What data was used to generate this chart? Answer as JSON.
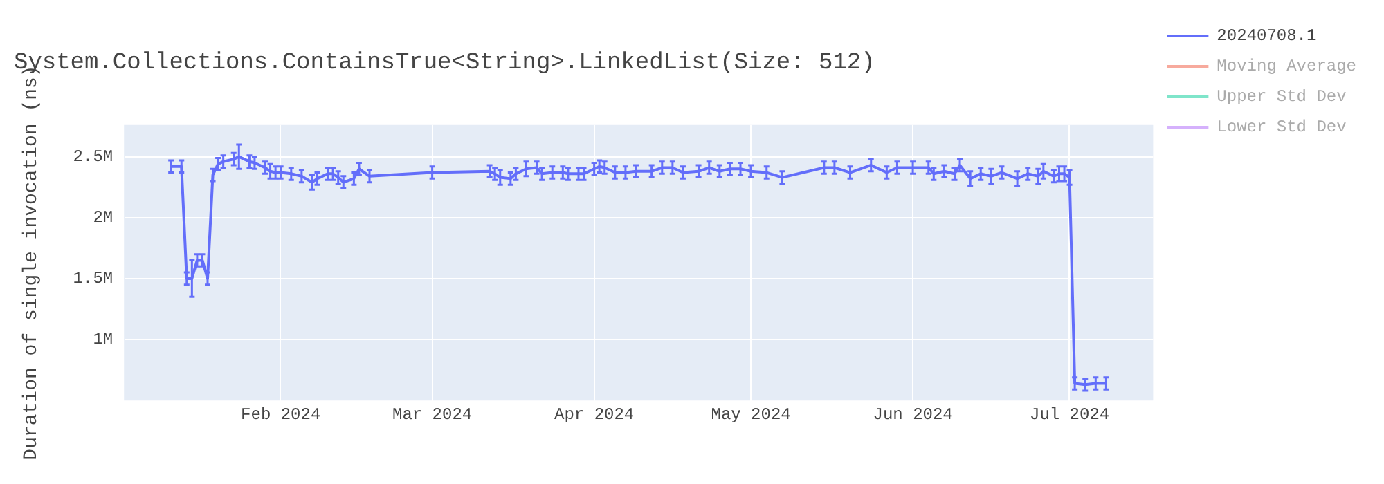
{
  "chart_data": {
    "type": "line",
    "title": "System.Collections.ContainsTrue<String>.LinkedList(Size: 512)",
    "ylabel": "Duration of single invocation (ns)",
    "xlim": [
      "2024-01-02",
      "2024-07-17"
    ],
    "ylim": [
      500000,
      2760000
    ],
    "xticks": [
      {
        "value": "2024-02-01",
        "label": "Feb 2024"
      },
      {
        "value": "2024-03-01",
        "label": "Mar 2024"
      },
      {
        "value": "2024-04-01",
        "label": "Apr 2024"
      },
      {
        "value": "2024-05-01",
        "label": "May 2024"
      },
      {
        "value": "2024-06-01",
        "label": "Jun 2024"
      },
      {
        "value": "2024-07-01",
        "label": "Jul 2024"
      }
    ],
    "yticks": [
      {
        "value": 1000000,
        "label": "1M"
      },
      {
        "value": 1500000,
        "label": "1.5M"
      },
      {
        "value": 2000000,
        "label": "2M"
      },
      {
        "value": 2500000,
        "label": "2.5M"
      }
    ],
    "grid": true,
    "legend": "top right",
    "line_style": "solid",
    "series": [
      {
        "name": "20240708.1",
        "color": "#636efa",
        "x": [
          "2024-01-11",
          "2024-01-13",
          "2024-01-14",
          "2024-01-15",
          "2024-01-16",
          "2024-01-17",
          "2024-01-18",
          "2024-01-19",
          "2024-01-20",
          "2024-01-21",
          "2024-01-23",
          "2024-01-24",
          "2024-01-26",
          "2024-01-27",
          "2024-01-29",
          "2024-01-30",
          "2024-01-31",
          "2024-02-01",
          "2024-02-03",
          "2024-02-05",
          "2024-02-07",
          "2024-02-08",
          "2024-02-10",
          "2024-02-11",
          "2024-02-12",
          "2024-02-13",
          "2024-02-15",
          "2024-02-16",
          "2024-02-18",
          "2024-03-01",
          "2024-03-12",
          "2024-03-13",
          "2024-03-14",
          "2024-03-16",
          "2024-03-17",
          "2024-03-19",
          "2024-03-21",
          "2024-03-22",
          "2024-03-24",
          "2024-03-26",
          "2024-03-27",
          "2024-03-29",
          "2024-03-30",
          "2024-04-01",
          "2024-04-02",
          "2024-04-03",
          "2024-04-05",
          "2024-04-07",
          "2024-04-09",
          "2024-04-12",
          "2024-04-14",
          "2024-04-16",
          "2024-04-18",
          "2024-04-21",
          "2024-04-23",
          "2024-04-25",
          "2024-04-27",
          "2024-04-29",
          "2024-05-01",
          "2024-05-04",
          "2024-05-07",
          "2024-05-15",
          "2024-05-17",
          "2024-05-20",
          "2024-05-24",
          "2024-05-27",
          "2024-05-29",
          "2024-06-01",
          "2024-06-04",
          "2024-06-05",
          "2024-06-07",
          "2024-06-09",
          "2024-06-10",
          "2024-06-12",
          "2024-06-14",
          "2024-06-16",
          "2024-06-18",
          "2024-06-21",
          "2024-06-23",
          "2024-06-25",
          "2024-06-26",
          "2024-06-28",
          "2024-06-29",
          "2024-06-30",
          "2024-07-01",
          "2024-07-02",
          "2024-07-04",
          "2024-07-06",
          "2024-07-08"
        ],
        "values": [
          2420000,
          2420000,
          1500000,
          1500000,
          1650000,
          1650000,
          1500000,
          2350000,
          2440000,
          2460000,
          2480000,
          2500000,
          2460000,
          2450000,
          2410000,
          2380000,
          2370000,
          2370000,
          2360000,
          2340000,
          2290000,
          2320000,
          2360000,
          2360000,
          2330000,
          2290000,
          2320000,
          2400000,
          2340000,
          2370000,
          2380000,
          2360000,
          2330000,
          2320000,
          2360000,
          2400000,
          2410000,
          2360000,
          2370000,
          2370000,
          2360000,
          2360000,
          2360000,
          2400000,
          2420000,
          2410000,
          2370000,
          2370000,
          2380000,
          2380000,
          2410000,
          2410000,
          2370000,
          2380000,
          2410000,
          2380000,
          2400000,
          2400000,
          2380000,
          2370000,
          2330000,
          2410000,
          2410000,
          2370000,
          2430000,
          2370000,
          2410000,
          2410000,
          2410000,
          2360000,
          2380000,
          2360000,
          2430000,
          2320000,
          2360000,
          2340000,
          2370000,
          2320000,
          2360000,
          2340000,
          2380000,
          2340000,
          2360000,
          2360000,
          2330000,
          640000,
          630000,
          640000,
          640000
        ],
        "errors": [
          50000,
          50000,
          50000,
          150000,
          50000,
          50000,
          50000,
          50000,
          50000,
          50000,
          50000,
          100000,
          50000,
          50000,
          50000,
          60000,
          50000,
          50000,
          50000,
          50000,
          60000,
          50000,
          50000,
          50000,
          50000,
          50000,
          50000,
          50000,
          50000,
          50000,
          50000,
          50000,
          60000,
          50000,
          50000,
          60000,
          50000,
          50000,
          50000,
          50000,
          50000,
          50000,
          50000,
          50000,
          50000,
          50000,
          50000,
          50000,
          50000,
          50000,
          50000,
          50000,
          50000,
          50000,
          50000,
          50000,
          50000,
          50000,
          50000,
          50000,
          50000,
          50000,
          50000,
          50000,
          50000,
          50000,
          50000,
          50000,
          50000,
          50000,
          50000,
          50000,
          50000,
          60000,
          50000,
          60000,
          50000,
          60000,
          50000,
          60000,
          60000,
          50000,
          60000,
          60000,
          60000,
          50000,
          50000,
          50000,
          50000
        ]
      },
      {
        "name": "Moving Average",
        "color": "#ef553b"
      },
      {
        "name": "Upper Std Dev",
        "color": "#00cc96"
      },
      {
        "name": "Lower Std Dev",
        "color": "#ab63fa"
      }
    ]
  }
}
